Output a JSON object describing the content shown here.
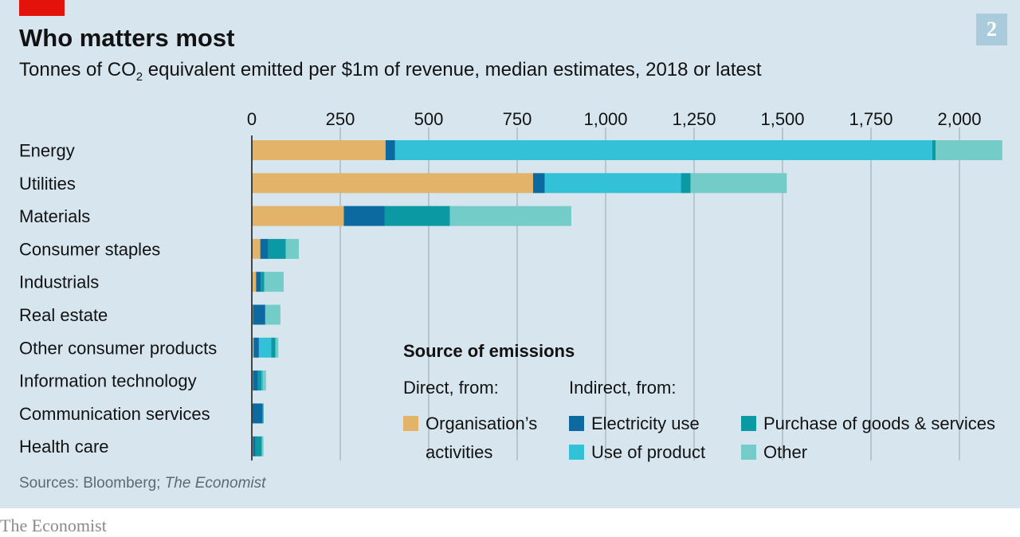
{
  "header": {
    "title": "Who matters most",
    "subtitle_pre": "Tonnes of CO",
    "subtitle_sub": "2",
    "subtitle_post": " equivalent emitted per $1m of revenue, median estimates, 2018 or latest",
    "chart_number": "2"
  },
  "legend": {
    "title": "Source of emissions",
    "direct_heading": "Direct, from:",
    "indirect_heading": "Indirect, from:",
    "items": {
      "organisation": "Organisation's activities",
      "organisation_line1": "Organisation’s",
      "organisation_line2": "activities",
      "electricity": "Electricity use",
      "purchase": "Purchase of goods & services",
      "use_of_product": "Use of product",
      "other": "Other"
    }
  },
  "footer": {
    "source_prefix": "Sources: Bloomberg; ",
    "source_italic": "The Economist",
    "brand": "The Economist"
  },
  "colors": {
    "background": "#d7e6ee",
    "organisation": "#e3b36a",
    "electricity": "#0d6aa0",
    "purchase": "#0b9aa3",
    "use_of_product": "#32c1d6",
    "other": "#74ccc9",
    "accent_red": "#e3120b"
  },
  "chart_data": {
    "type": "bar",
    "orientation": "horizontal",
    "stacked": true,
    "xlim": [
      0,
      2100
    ],
    "ticks": [
      0,
      250,
      500,
      750,
      1000,
      1250,
      1500,
      1750,
      2000
    ],
    "tick_labels": [
      "0",
      "250",
      "500",
      "750",
      "1,000",
      "1,250",
      "1,500",
      "1,750",
      "2,000"
    ],
    "categories": [
      "Energy",
      "Utilities",
      "Materials",
      "Consumer staples",
      "Industrials",
      "Real estate",
      "Other consumer products",
      "Information technology",
      "Communication services",
      "Health care"
    ],
    "series": [
      {
        "key": "organisation",
        "name": "Organisation's activities",
        "values": [
          378,
          795,
          260,
          24,
          12,
          3,
          5,
          3,
          2,
          3
        ]
      },
      {
        "key": "electricity",
        "name": "Electricity use",
        "values": [
          27,
          33,
          115,
          22,
          13,
          35,
          15,
          14,
          28,
          7
        ]
      },
      {
        "key": "purchase",
        "name": "Purchase of goods & services",
        "values": [
          0,
          0,
          185,
          50,
          10,
          0,
          0,
          10,
          3,
          18
        ]
      },
      {
        "key": "use_of_product",
        "name": "Use of product",
        "values": [
          1518,
          385,
          0,
          0,
          0,
          0,
          35,
          5,
          0,
          0
        ]
      },
      {
        "key": "purchase_2",
        "name": "Purchase of goods & services",
        "values": [
          10,
          27,
          0,
          0,
          0,
          0,
          12,
          0,
          0,
          0
        ]
      },
      {
        "key": "other",
        "name": "Other",
        "values": [
          188,
          272,
          343,
          37,
          55,
          43,
          8,
          8,
          0,
          5
        ]
      }
    ]
  }
}
